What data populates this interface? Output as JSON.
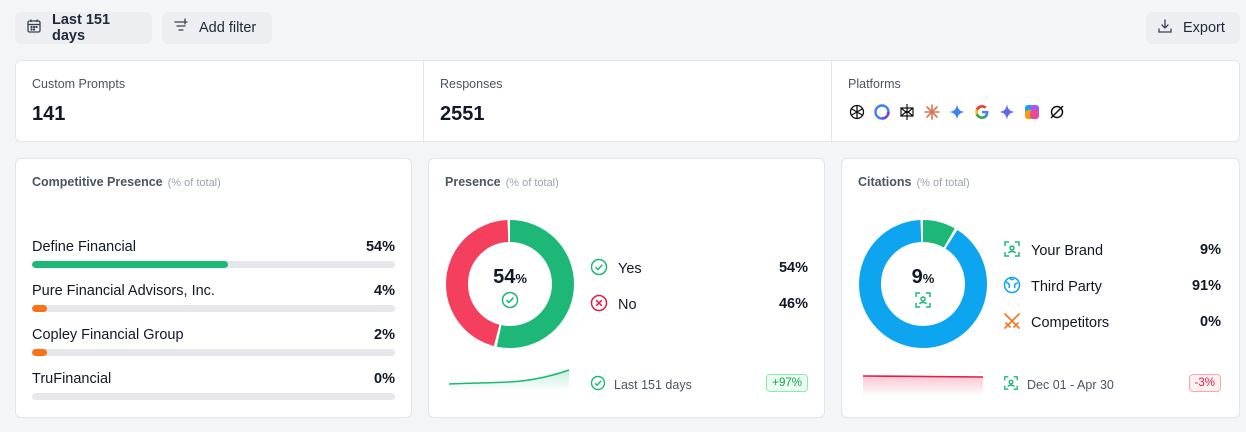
{
  "toolbar": {
    "date_label": "Last 151 days",
    "filter_label": "Add filter",
    "export_label": "Export"
  },
  "stats": {
    "custom_prompts": {
      "label": "Custom Prompts",
      "value": "141"
    },
    "responses": {
      "label": "Responses",
      "value": "2551"
    },
    "platforms": {
      "label": "Platforms",
      "icons": [
        "openai-icon",
        "copilot-ring-icon",
        "perplexity-icon",
        "claude-icon",
        "gemini-icon",
        "google-icon",
        "gemini-alt-icon",
        "microsoft-copilot-icon",
        "grok-icon"
      ]
    }
  },
  "competitive": {
    "title": "Competitive Presence",
    "subtitle": "(% of total)",
    "rows": [
      {
        "name": "Define Financial",
        "pct": "54%",
        "value": 0.54,
        "color": "#1db877"
      },
      {
        "name": "Pure Financial Advisors, Inc.",
        "pct": "4%",
        "value": 0.04,
        "color": "#f97316"
      },
      {
        "name": "Copley Financial Group",
        "pct": "2%",
        "value": 0.02,
        "color": "#f97316"
      },
      {
        "name": "TruFinancial",
        "pct": "0%",
        "value": 0.0,
        "color": "#f97316"
      }
    ]
  },
  "presence": {
    "title": "Presence",
    "subtitle": "(% of total)",
    "center_value": "54",
    "center_unit": "%",
    "yes_value": 0.54,
    "yes_color": "#1db877",
    "no_color": "#f43f5e",
    "legend": [
      {
        "label": "Yes",
        "pct": "54%"
      },
      {
        "label": "No",
        "pct": "46%"
      }
    ],
    "footer_label": "Last 151 days",
    "badge": "+97%"
  },
  "citations": {
    "title": "Citations",
    "subtitle": "(% of total)",
    "center_value": "9",
    "center_unit": "%",
    "brand_value": 0.09,
    "brand_color": "#1db877",
    "third_color": "#0ea5f0",
    "legend": [
      {
        "label": "Your Brand",
        "pct": "9%"
      },
      {
        "label": "Third Party",
        "pct": "91%"
      },
      {
        "label": "Competitors",
        "pct": "0%"
      }
    ],
    "footer_label": "Dec 01 - Apr 30",
    "badge": "-3%"
  }
}
